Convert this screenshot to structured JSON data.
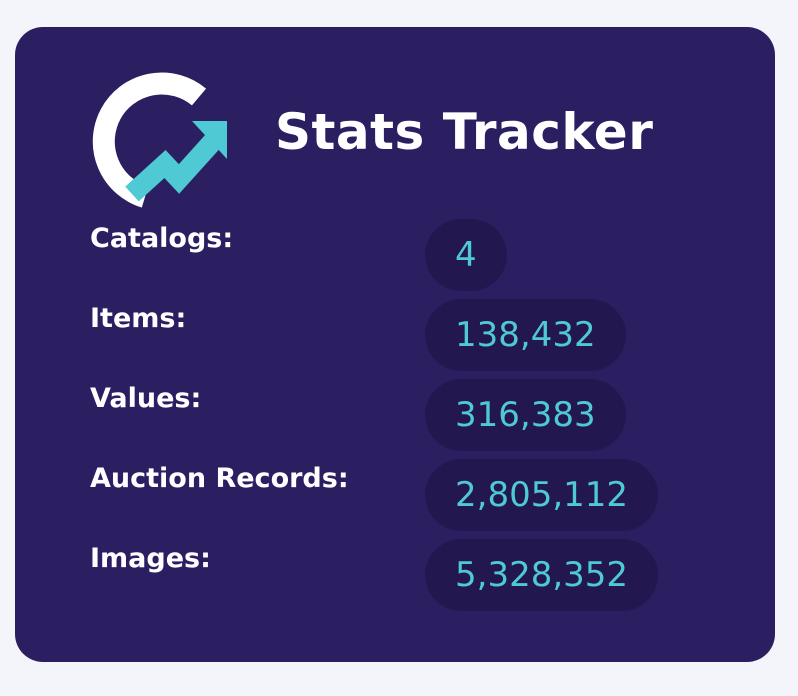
{
  "header": {
    "title": "Stats Tracker"
  },
  "stats": [
    {
      "label": "Catalogs:",
      "value": "4"
    },
    {
      "label": "Items:",
      "value": "138,432"
    },
    {
      "label": "Values:",
      "value": "316,383"
    },
    {
      "label": "Auction Records:",
      "value": "2,805,112"
    },
    {
      "label": "Images:",
      "value": "5,328,352"
    }
  ]
}
